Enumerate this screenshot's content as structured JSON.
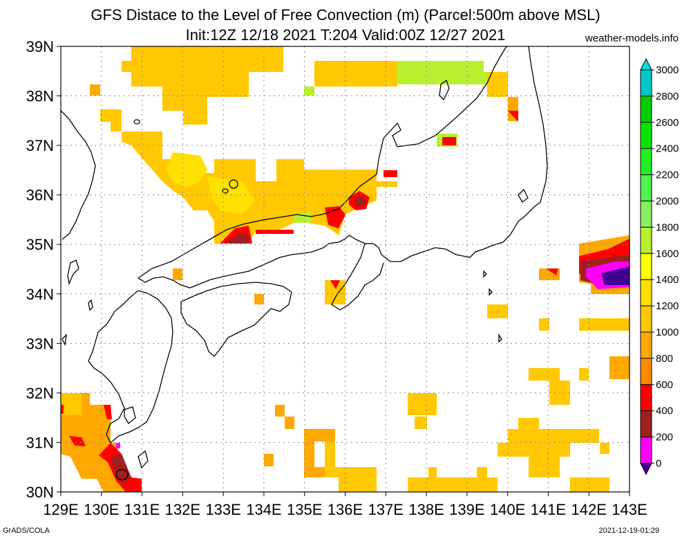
{
  "title": {
    "line1": "GFS Distace to the Level of Free Convection (m) (Parcel:500m above MSL)",
    "line2": "Init:12Z 12/18 2021 T:204 Valid:00Z 12/27 2021"
  },
  "site": "weather-models.info",
  "credit": "GrADS/COLA",
  "timestamp": "2021-12-19-01:29",
  "axes": {
    "lon_labels": [
      "129E",
      "130E",
      "131E",
      "132E",
      "133E",
      "134E",
      "135E",
      "136E",
      "137E",
      "138E",
      "139E",
      "140E",
      "141E",
      "142E",
      "143E"
    ],
    "lat_labels": [
      "39N",
      "38N",
      "37N",
      "36N",
      "35N",
      "34N",
      "33N",
      "32N",
      "31N",
      "30N"
    ],
    "lon_range": [
      129,
      143
    ],
    "lat_range": [
      30,
      39
    ],
    "grid": "dotted"
  },
  "colorbar": {
    "ticks": [
      "3000",
      "2800",
      "2600",
      "2400",
      "2200",
      "2000",
      "1800",
      "1600",
      "1400",
      "1200",
      "1000",
      "800",
      "600",
      "400",
      "200",
      "0"
    ],
    "colors": [
      "#00e0e0",
      "#00c8c8",
      "#00d000",
      "#00e400",
      "#22f022",
      "#4cf44c",
      "#88f060",
      "#b8f030",
      "#ffff00",
      "#ffe000",
      "#ffc800",
      "#ffa800",
      "#ff8c00",
      "#ff0000",
      "#a02020",
      "#ff00ff",
      "#400090"
    ]
  },
  "colors": {
    "orange": "#ffa800",
    "lightorange": "#ffc800",
    "yellow": "#ffe000",
    "lime": "#b8f030",
    "red": "#ff0000",
    "brown": "#a02020",
    "magenta": "#ff00ff",
    "purple": "#400090"
  }
}
